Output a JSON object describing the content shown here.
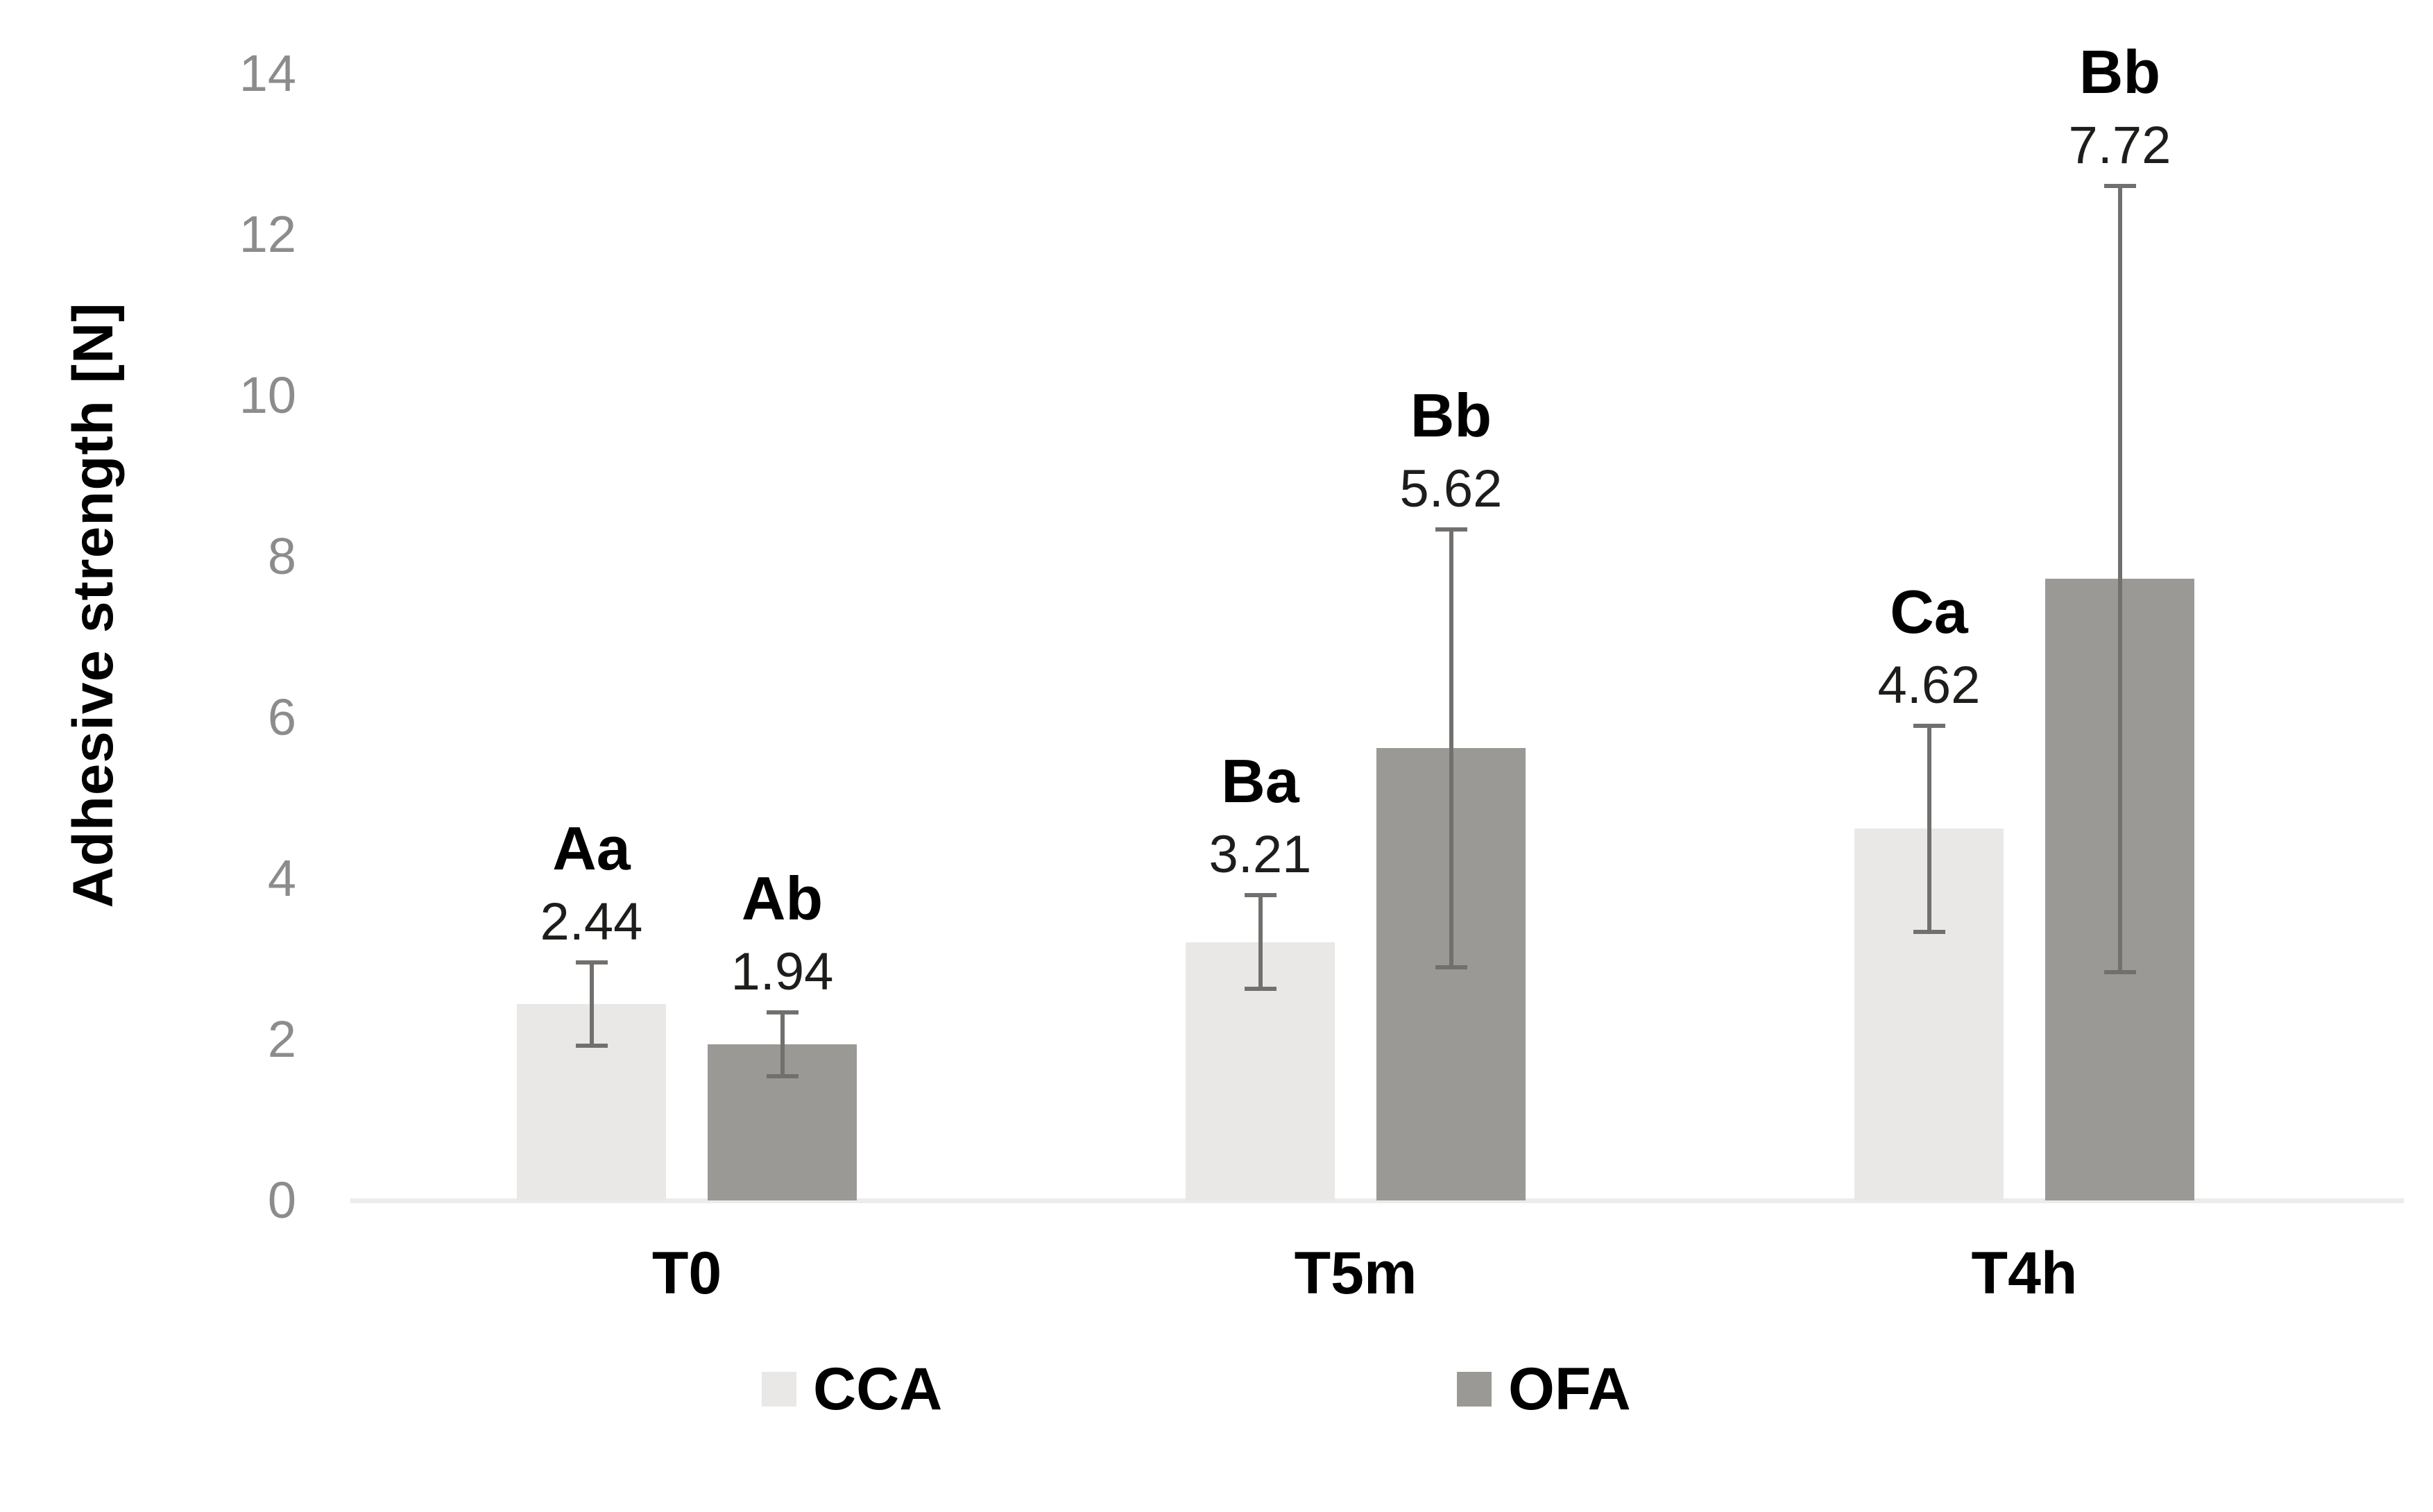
{
  "chart_data": {
    "type": "bar",
    "title": "",
    "ylabel": "Adhesive strength [N]",
    "xlabel": "",
    "ylim": [
      0,
      14
    ],
    "yticks": [
      0,
      2,
      4,
      6,
      8,
      10,
      12,
      14
    ],
    "categories": [
      "T0",
      "T5m",
      "T4h"
    ],
    "series": [
      {
        "name": "CCA",
        "color": "#e9e8e6",
        "values": [
          2.44,
          3.21,
          4.62
        ],
        "errors": [
          0.52,
          0.58,
          1.28
        ],
        "value_labels": [
          "2.44",
          "3.21",
          "4.62"
        ],
        "sig_labels": [
          "Aa",
          "Ba",
          "Ca"
        ]
      },
      {
        "name": "OFA",
        "color": "#9a9996",
        "values": [
          1.94,
          5.62,
          7.72
        ],
        "errors": [
          0.4,
          2.72,
          4.88
        ],
        "value_labels": [
          "1.94",
          "5.62",
          "7.72"
        ],
        "sig_labels": [
          "Ab",
          "Bb",
          "Bb"
        ]
      }
    ],
    "legend": [
      "CCA",
      "OFA"
    ],
    "legend_position": "bottom",
    "grid": false,
    "error_bars": true
  },
  "colors": {
    "background": "#ffffff",
    "axis_line": "#ececea",
    "error_bar": "#71706e",
    "tick_text": "#8c8c8c",
    "value_text": "#1d1d1b",
    "sig_text": "#000000",
    "legend_text": "#000000"
  }
}
